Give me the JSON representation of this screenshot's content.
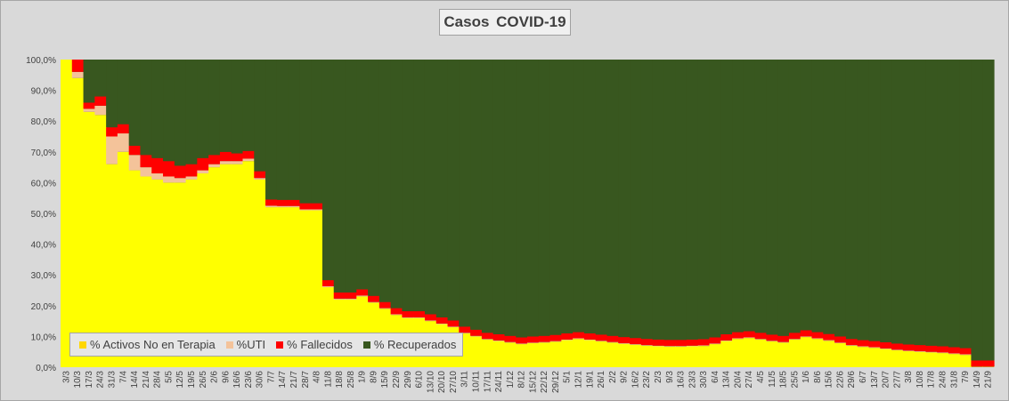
{
  "title": "Casos  COVID-19",
  "colors": {
    "background": "#d9d9d9",
    "plot": "#38571f",
    "active": "#ffff00",
    "uti": "#f4c39a",
    "deaths": "#ff0000",
    "recovered": "#38571f"
  },
  "chart_data": {
    "type": "area",
    "stacked_percent": true,
    "title": "Casos  COVID-19",
    "ylim": [
      0,
      100
    ],
    "y_ticks": [
      "0,0%",
      "10,0%",
      "20,0%",
      "30,0%",
      "40,0%",
      "50,0%",
      "60,0%",
      "70,0%",
      "80,0%",
      "90,0%",
      "100,0%"
    ],
    "x_tick_labels": [
      "3/3",
      "10/3",
      "17/3",
      "24/3",
      "31/3",
      "7/4",
      "14/4",
      "21/4",
      "28/4",
      "5/5",
      "12/5",
      "19/5",
      "26/5",
      "2/6",
      "9/6",
      "16/6",
      "23/6",
      "30/6",
      "7/7",
      "14/7",
      "21/7",
      "28/7",
      "4/8",
      "11/8",
      "18/8",
      "25/8",
      "1/9",
      "8/9",
      "15/9",
      "22/9",
      "29/9",
      "6/10",
      "13/10",
      "20/10",
      "27/10",
      "3/11",
      "10/11",
      "17/11",
      "24/11",
      "1/12",
      "8/12",
      "15/12",
      "22/12",
      "29/12",
      "5/1",
      "12/1",
      "19/1",
      "26/1",
      "2/2",
      "9/2",
      "16/2",
      "23/2",
      "2/3",
      "9/3",
      "16/3",
      "23/3",
      "30/3",
      "6/4",
      "13/4",
      "20/4",
      "27/4",
      "4/5",
      "11/5",
      "18/5",
      "25/5",
      "1/6",
      "8/6",
      "15/6",
      "22/6",
      "29/6",
      "6/7",
      "13/7",
      "20/7",
      "27/7",
      "3/8",
      "10/8",
      "17/8",
      "24/8",
      "31/8",
      "7/9",
      "14/9",
      "21/9"
    ],
    "series": [
      {
        "name": "% Activos No en Terapia",
        "values": [
          100,
          94,
          83,
          82,
          66,
          70,
          64,
          62,
          61,
          60,
          60,
          61,
          63,
          65,
          66,
          66,
          67,
          61,
          52,
          52,
          52,
          51,
          51,
          26,
          22,
          22,
          23,
          21,
          19,
          17,
          16,
          16,
          15,
          14,
          13,
          11,
          10,
          9,
          8.5,
          8.0,
          7.5,
          7.8,
          8.0,
          8.3,
          8.8,
          9.2,
          8.8,
          8.4,
          8.0,
          7.6,
          7.3,
          7.0,
          6.8,
          6.7,
          6.7,
          6.8,
          6.9,
          7.5,
          8.5,
          9.2,
          9.5,
          9.0,
          8.4,
          8.0,
          9.0,
          9.8,
          9.2,
          8.6,
          7.8,
          7.0,
          6.6,
          6.3,
          5.9,
          5.5,
          5.2,
          5.0,
          4.8,
          4.6,
          4.3,
          4.0,
          0.1,
          0.1
        ]
      },
      {
        "name": "%UTI",
        "values": [
          0,
          2,
          1,
          3,
          9,
          6,
          5,
          3,
          2,
          2,
          1.5,
          1,
          1,
          1,
          1,
          1,
          0.8,
          0.5,
          0.5,
          0.4,
          0.4,
          0.3,
          0.3,
          0.3,
          0.3,
          0.3,
          0.3,
          0.2,
          0.2,
          0.2,
          0.2,
          0.2,
          0.2,
          0.2,
          0.2,
          0.2,
          0.2,
          0.2,
          0.2,
          0.2,
          0.2,
          0.2,
          0.2,
          0.2,
          0.2,
          0.2,
          0.2,
          0.2,
          0.2,
          0.2,
          0.2,
          0.2,
          0.2,
          0.2,
          0.2,
          0.2,
          0.2,
          0.2,
          0.2,
          0.2,
          0.2,
          0.2,
          0.2,
          0.2,
          0.2,
          0.2,
          0.2,
          0.2,
          0.2,
          0.2,
          0.2,
          0.2,
          0.2,
          0.2,
          0.2,
          0.2,
          0.2,
          0.2,
          0.2,
          0.2,
          0.1,
          0.1
        ]
      },
      {
        "name": "% Fallecidos",
        "values": [
          0,
          4,
          2,
          3,
          3,
          3,
          3,
          4,
          5,
          5,
          4,
          4,
          4,
          3,
          3,
          2.5,
          2.5,
          2.2,
          2,
          2,
          2,
          2,
          2,
          2,
          2,
          2,
          2,
          2,
          2,
          2,
          2,
          2,
          2,
          2,
          2,
          2,
          2,
          2,
          2,
          2,
          2,
          2,
          2,
          2,
          2,
          2,
          2,
          2,
          2,
          2,
          2,
          2,
          2,
          2,
          2,
          2,
          2,
          2,
          2,
          2,
          2,
          2,
          2,
          2,
          2,
          2,
          2,
          2,
          2,
          2,
          2,
          2,
          2,
          2,
          2,
          2,
          2,
          2,
          2,
          2,
          2,
          2
        ]
      },
      {
        "name": "% Recuperados",
        "values": [
          0,
          0,
          14,
          12,
          22,
          21,
          28,
          31,
          32,
          33,
          34.5,
          34,
          32,
          31,
          30,
          30.5,
          29.7,
          36.3,
          45.5,
          45.6,
          45.6,
          46.7,
          46.7,
          71.7,
          75.7,
          75.7,
          74.7,
          76.8,
          78.8,
          80.8,
          81.8,
          81.8,
          82.8,
          83.8,
          84.8,
          86.8,
          87.8,
          88.8,
          89.3,
          89.8,
          90.3,
          90.0,
          89.8,
          89.5,
          89.0,
          88.6,
          89.0,
          89.4,
          89.8,
          90.2,
          90.5,
          90.8,
          91.0,
          91.1,
          91.1,
          91.0,
          90.9,
          90.3,
          89.3,
          88.6,
          88.3,
          88.8,
          89.4,
          89.8,
          88.8,
          88.0,
          88.6,
          89.2,
          90.0,
          90.8,
          91.2,
          91.5,
          91.9,
          92.3,
          92.6,
          92.8,
          93.0,
          93.2,
          93.5,
          93.8,
          97.8,
          97.8
        ]
      }
    ]
  },
  "legend": [
    {
      "label": "% Activos No en Terapia",
      "color": "#ffd700"
    },
    {
      "label": "%UTI",
      "color": "#f4c39a"
    },
    {
      "label": "% Fallecidos",
      "color": "#ff0000"
    },
    {
      "label": "% Recuperados",
      "color": "#38571f"
    }
  ]
}
